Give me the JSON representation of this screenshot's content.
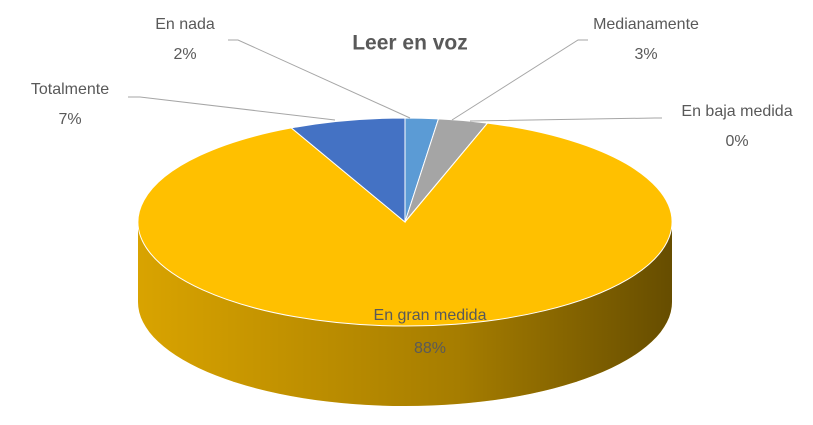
{
  "chart_data": {
    "type": "pie",
    "title": "Leer en voz",
    "categories": [
      "En nada",
      "Medianamente",
      "En baja medida",
      "En gran medida",
      "Totalmente"
    ],
    "values": [
      2,
      3,
      0,
      88,
      7
    ],
    "value_labels": [
      "2%",
      "3%",
      "0%",
      "88%",
      "7%"
    ],
    "colors": [
      "#5b9bd5",
      "#a5a5a5",
      "#ed7d31",
      "#ffc000",
      "#4472c4"
    ]
  }
}
